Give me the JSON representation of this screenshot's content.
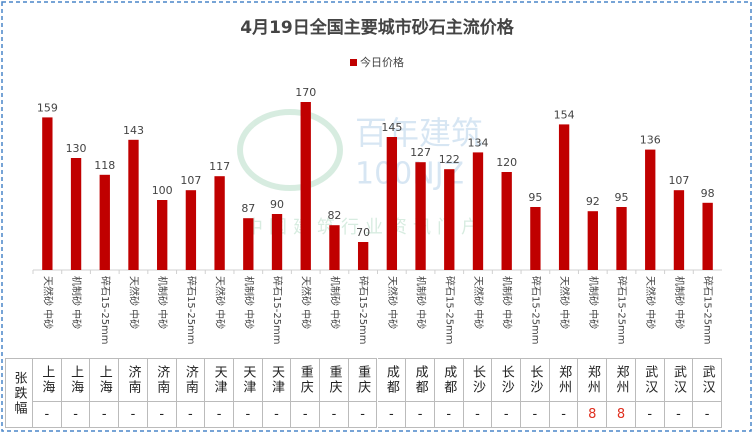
{
  "chart_data": {
    "type": "bar",
    "title": "4月19日全国主要城市砂石主流价格",
    "categories": [
      "天然砂 中砂",
      "机制砂 中砂",
      "碎石15-25mm",
      "天然砂 中砂",
      "机制砂 中砂",
      "碎石15-25mm",
      "天然砂 中砂",
      "机制砂 中砂",
      "碎石15-25mm",
      "天然砂 中砂",
      "机制砂 中砂",
      "碎石15-25mm",
      "天然砂 中砂",
      "机制砂 中砂",
      "碎石15-25mm",
      "天然砂 中砂",
      "机制砂 中砂",
      "碎石15-25mm",
      "天然砂 中砂",
      "机制砂 中砂",
      "碎石15-25mm",
      "天然砂 中砂",
      "机制砂 中砂",
      "碎石15-25mm"
    ],
    "series": [
      {
        "name": "今日价格",
        "color": "#c00000",
        "values": [
          159,
          130,
          118,
          143,
          100,
          107,
          117,
          87,
          90,
          170,
          82,
          70,
          145,
          127,
          122,
          134,
          120,
          95,
          154,
          92,
          95,
          136,
          107,
          98
        ]
      }
    ],
    "ylim": [
      50,
      180
    ],
    "legend": "top",
    "data_labels": true
  },
  "table": {
    "row_header": "张跌幅",
    "cities": [
      "上海",
      "上海",
      "上海",
      "济南",
      "济南",
      "济南",
      "天津",
      "天津",
      "天津",
      "重庆",
      "重庆",
      "重庆",
      "成都",
      "成都",
      "成都",
      "长沙",
      "长沙",
      "长沙",
      "郑州",
      "郑州",
      "郑州",
      "武汉",
      "武汉",
      "武汉"
    ],
    "changes": [
      "-",
      "-",
      "-",
      "-",
      "-",
      "-",
      "-",
      "-",
      "-",
      "-",
      "-",
      "-",
      "-",
      "-",
      "-",
      "-",
      "-",
      "-",
      "-",
      "8",
      "8",
      "-",
      "-",
      "-"
    ]
  },
  "watermark": {
    "brand": "百年建筑",
    "code": "100NJZ",
    "slogan": "中国建筑行业资讯门户"
  }
}
